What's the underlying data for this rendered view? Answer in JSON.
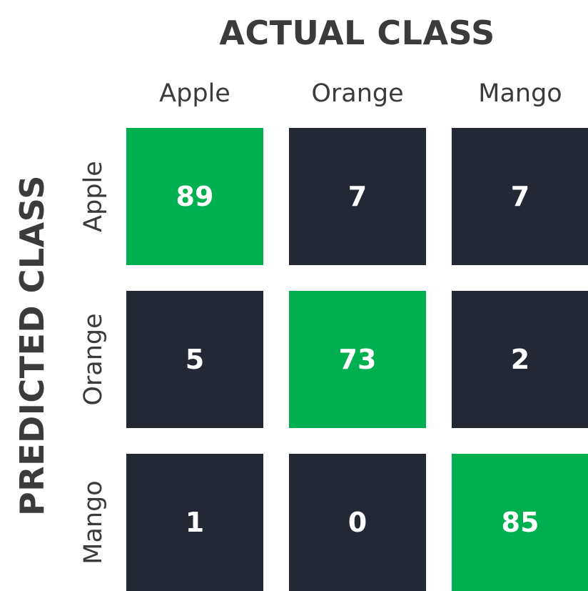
{
  "chart_data": {
    "type": "heatmap",
    "title": "",
    "xlabel": "ACTUAL CLASS",
    "ylabel": "PREDICTED CLASS",
    "x_categories": [
      "Apple",
      "Orange",
      "Mango"
    ],
    "y_categories": [
      "Apple",
      "Orange",
      "Mango"
    ],
    "values": [
      [
        89,
        7,
        7
      ],
      [
        5,
        73,
        2
      ],
      [
        1,
        0,
        85
      ]
    ],
    "diagonal_color": "#00af50",
    "off_diagonal_color": "#232834",
    "value_text_color": "#ffffff",
    "legend": "none"
  }
}
